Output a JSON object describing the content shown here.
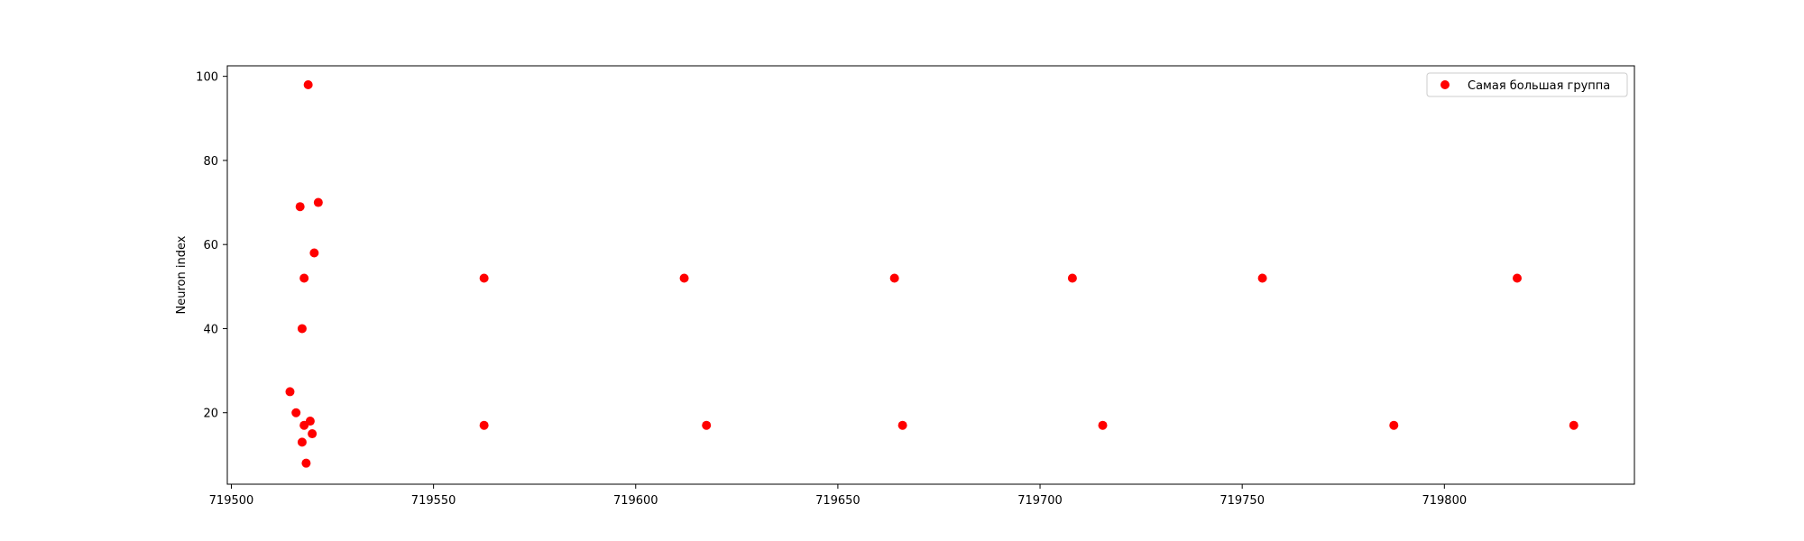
{
  "chart_data": {
    "type": "scatter",
    "title": "",
    "xlabel": "",
    "ylabel": "Neuron index",
    "xlim": [
      719499,
      719847
    ],
    "ylim": [
      3,
      102.5
    ],
    "xticks": [
      719500,
      719550,
      719600,
      719650,
      719700,
      719750,
      719800
    ],
    "yticks": [
      20,
      40,
      60,
      80,
      100
    ],
    "grid": false,
    "legend_position": "top-right",
    "series": [
      {
        "name": "Самая большая группа",
        "color": "#ff0000",
        "points": [
          {
            "x": 719519,
            "y": 98
          },
          {
            "x": 719521.5,
            "y": 70
          },
          {
            "x": 719517,
            "y": 69
          },
          {
            "x": 719520.5,
            "y": 58
          },
          {
            "x": 719518,
            "y": 52
          },
          {
            "x": 719517.5,
            "y": 40
          },
          {
            "x": 719514.5,
            "y": 25
          },
          {
            "x": 719516,
            "y": 20
          },
          {
            "x": 719519.5,
            "y": 18
          },
          {
            "x": 719518,
            "y": 17
          },
          {
            "x": 719520,
            "y": 15
          },
          {
            "x": 719517.5,
            "y": 13
          },
          {
            "x": 719518.5,
            "y": 8
          },
          {
            "x": 719562.5,
            "y": 52
          },
          {
            "x": 719562.5,
            "y": 17
          },
          {
            "x": 719612,
            "y": 52
          },
          {
            "x": 719617.5,
            "y": 17
          },
          {
            "x": 719664,
            "y": 52
          },
          {
            "x": 719666,
            "y": 17
          },
          {
            "x": 719708,
            "y": 52
          },
          {
            "x": 719715.5,
            "y": 17
          },
          {
            "x": 719755,
            "y": 52
          },
          {
            "x": 719787.5,
            "y": 17
          },
          {
            "x": 719818,
            "y": 52
          },
          {
            "x": 719832,
            "y": 17
          }
        ]
      }
    ]
  }
}
